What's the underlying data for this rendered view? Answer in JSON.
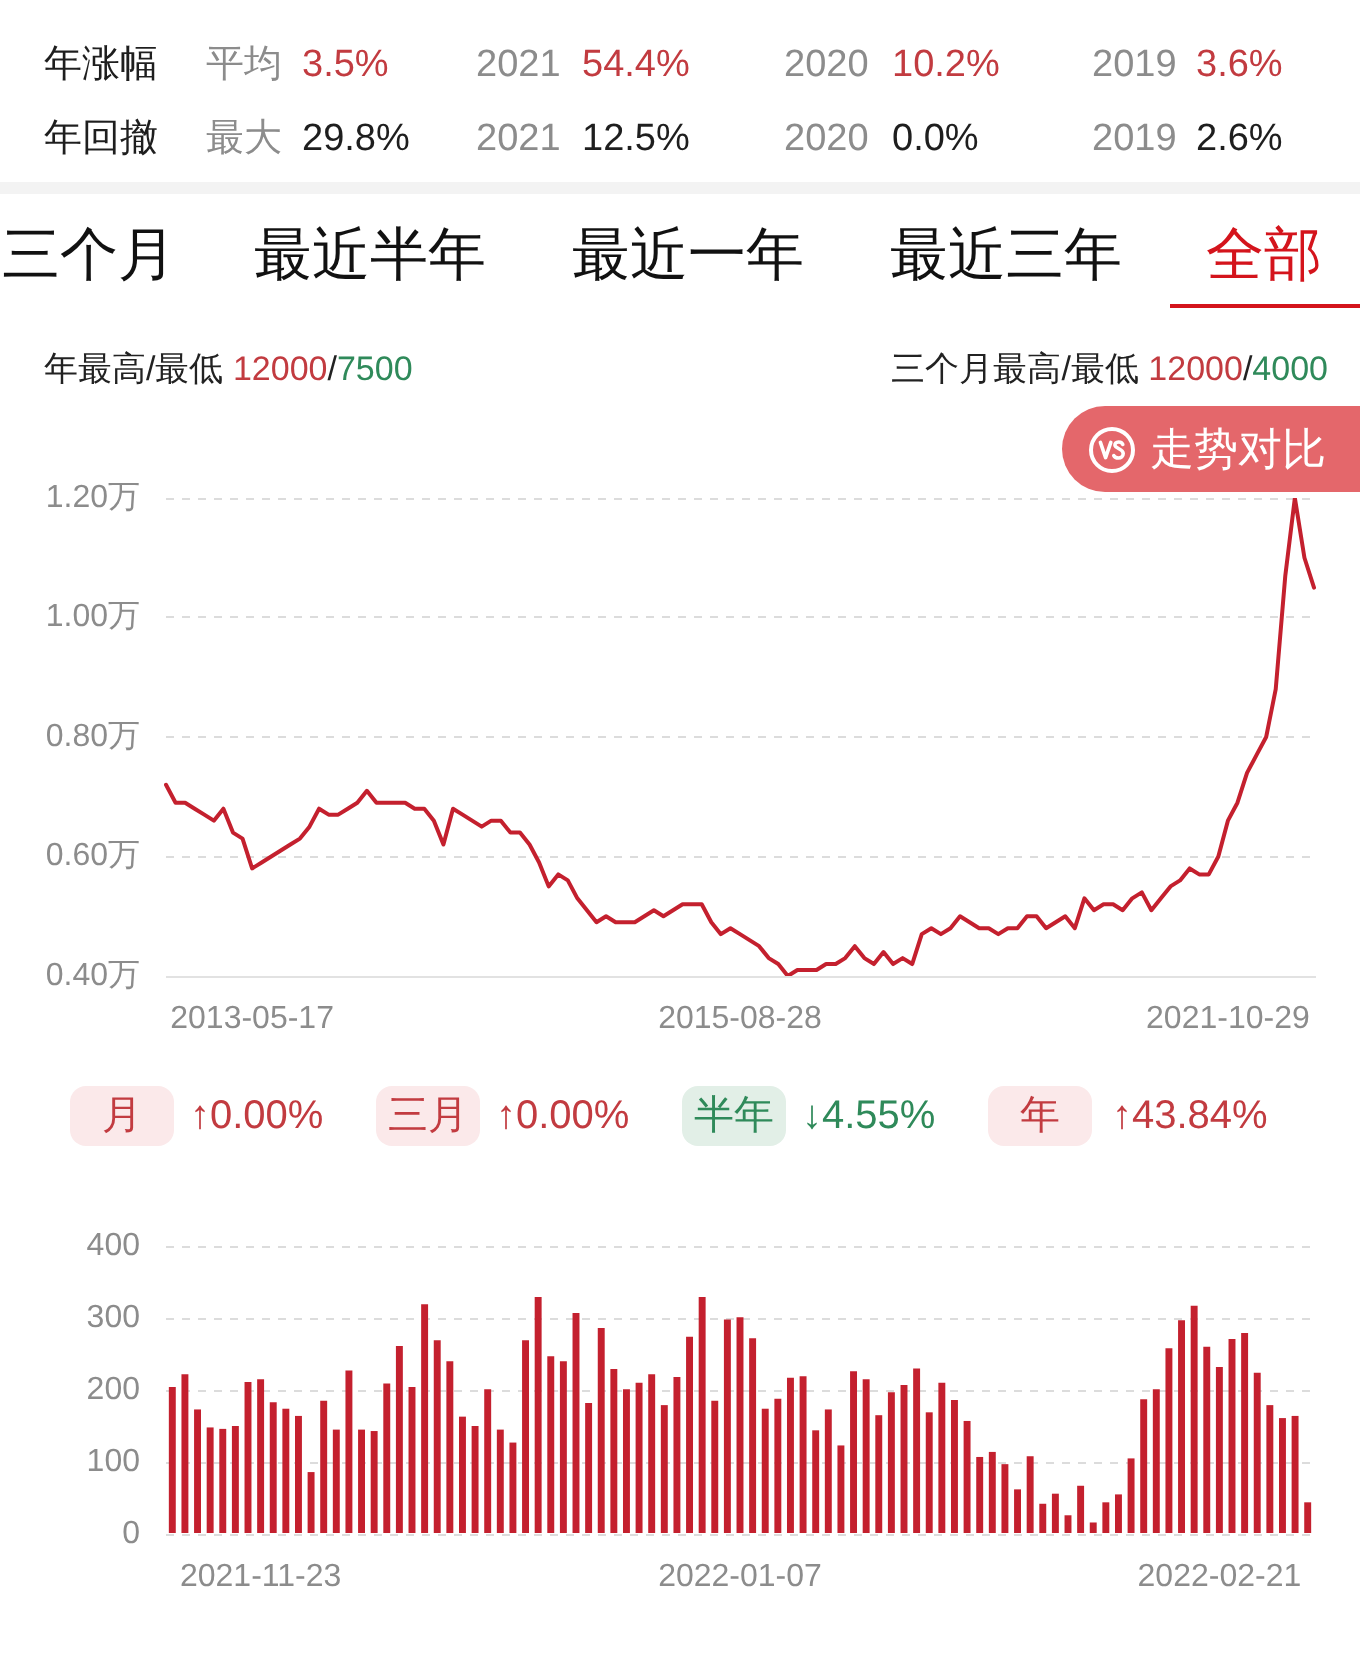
{
  "chart_data": [
    {
      "type": "other",
      "annotations": [
        "年涨幅",
        "平均",
        "3.5%",
        "2021",
        "54.4%",
        "2020",
        "10.2%",
        "2019",
        "3.6%",
        "年回撤",
        "最大",
        "29.8%",
        "2021",
        "12.5%",
        "2020",
        "0.0%",
        "2019",
        "2.6%",
        "三个月",
        "最近半年",
        "最近一年",
        "最近三年",
        "全部"
      ]
    },
    {
      "type": "line",
      "categories": [
        null,
        null,
        null,
        null,
        null,
        null,
        null,
        null,
        null,
        "2013-05-17",
        null,
        null,
        null,
        null,
        null,
        null,
        null,
        null,
        null,
        null,
        null,
        null,
        null,
        null,
        null,
        null,
        null,
        null,
        null,
        null,
        null,
        null,
        null,
        null,
        null,
        null,
        null,
        null,
        null,
        null,
        null,
        null,
        null,
        null,
        null,
        null,
        null,
        null,
        null,
        null,
        null,
        null,
        null,
        null,
        null,
        null,
        null,
        null,
        null,
        null,
        "2015-08-28",
        null,
        null,
        null,
        null,
        null,
        null,
        null,
        null,
        null,
        null,
        null,
        null,
        null,
        null,
        null,
        null,
        null,
        null,
        null,
        null,
        null,
        null,
        null,
        null,
        null,
        null,
        null,
        null,
        null,
        null,
        null,
        null,
        null,
        null,
        null,
        null,
        null,
        null,
        null,
        null,
        null,
        null,
        null,
        null,
        null,
        null,
        null,
        null,
        null,
        null,
        "2021-10-29",
        null,
        null,
        null,
        null,
        null,
        null,
        null,
        null,
        null
      ],
      "values": [
        0.72,
        0.69,
        0.69,
        0.68,
        0.67,
        0.66,
        0.68,
        0.64,
        0.63,
        0.58,
        0.59,
        0.6,
        0.61,
        0.62,
        0.63,
        0.65,
        0.68,
        0.67,
        0.67,
        0.68,
        0.69,
        0.71,
        0.69,
        0.69,
        0.69,
        0.69,
        0.68,
        0.68,
        0.66,
        0.62,
        0.68,
        0.67,
        0.66,
        0.65,
        0.66,
        0.66,
        0.64,
        0.64,
        0.62,
        0.59,
        0.55,
        0.57,
        0.56,
        0.53,
        0.51,
        0.49,
        0.5,
        0.49,
        0.49,
        0.49,
        0.5,
        0.51,
        0.5,
        0.51,
        0.52,
        0.52,
        0.52,
        0.49,
        0.47,
        0.48,
        0.47,
        0.46,
        0.45,
        0.43,
        0.42,
        0.4,
        0.41,
        0.41,
        0.41,
        0.42,
        0.42,
        0.43,
        0.45,
        0.43,
        0.42,
        0.44,
        0.42,
        0.43,
        0.42,
        0.47,
        0.48,
        0.47,
        0.48,
        0.5,
        0.49,
        0.48,
        0.48,
        0.47,
        0.48,
        0.48,
        0.5,
        0.5,
        0.48,
        0.49,
        0.5,
        0.48,
        0.53,
        0.51,
        0.52,
        0.52,
        0.51,
        0.53,
        0.54,
        0.51,
        0.53,
        0.55,
        0.56,
        0.58,
        0.57,
        0.57,
        0.6,
        0.66,
        0.69,
        0.74,
        0.77,
        0.8,
        0.88,
        1.07,
        1.2,
        1.1,
        1.05
      ],
      "color": "#c4202e",
      "ylim": [
        0.4,
        1.2
      ],
      "yticks": [
        {
          "value": 0.4,
          "label": "0.40万"
        },
        {
          "value": 0.6,
          "label": "0.60万"
        },
        {
          "value": 0.8,
          "label": "0.80万"
        },
        {
          "value": 1.0,
          "label": "1.00万"
        },
        {
          "value": 1.2,
          "label": "1.20万"
        }
      ],
      "grid": "y",
      "annotations": [
        "年最高/最低 12000/7500",
        "三个月最高/最低 12000/4000",
        "走势对比",
        "月 ↑0.00%",
        "三月 ↑0.00%",
        "半年 ↓4.55%",
        "年 ↑43.84%"
      ]
    },
    {
      "type": "bar",
      "categories": [
        null,
        null,
        null,
        null,
        null,
        null,
        null,
        "2021-11-23",
        null,
        null,
        null,
        null,
        null,
        null,
        null,
        null,
        null,
        null,
        null,
        null,
        null,
        null,
        null,
        null,
        null,
        null,
        null,
        null,
        null,
        null,
        null,
        null,
        null,
        null,
        null,
        null,
        null,
        null,
        null,
        null,
        null,
        null,
        null,
        null,
        null,
        "2022-01-07",
        null,
        null,
        null,
        null,
        null,
        null,
        null,
        null,
        null,
        null,
        null,
        null,
        null,
        null,
        null,
        null,
        null,
        null,
        null,
        null,
        null,
        null,
        null,
        null,
        null,
        null,
        null,
        null,
        null,
        null,
        null,
        null,
        null,
        null,
        null,
        null,
        null,
        "2022-02-21",
        null,
        null,
        null,
        null,
        null,
        null,
        null
      ],
      "values": [
        204,
        222,
        173,
        148,
        146,
        150,
        211,
        215,
        183,
        174,
        164,
        86,
        185,
        145,
        227,
        145,
        143,
        209,
        261,
        204,
        319,
        269,
        240,
        163,
        150,
        201,
        145,
        127,
        269,
        329,
        247,
        240,
        307,
        182,
        286,
        229,
        201,
        210,
        222,
        179,
        218,
        274,
        329,
        185,
        298,
        301,
        272,
        174,
        188,
        217,
        219,
        144,
        173,
        123,
        226,
        215,
        165,
        197,
        207,
        230,
        169,
        210,
        186,
        157,
        107,
        114,
        97,
        62,
        108,
        42,
        56,
        26,
        67,
        16,
        44,
        55,
        105,
        187,
        201,
        258,
        297,
        317,
        260,
        232,
        271,
        279,
        224,
        179,
        161,
        164,
        44
      ],
      "color": "#c4202e",
      "ylim": [
        0,
        400
      ],
      "yticks": [
        0,
        100,
        200,
        300,
        400
      ],
      "grid": "y"
    }
  ]
}
